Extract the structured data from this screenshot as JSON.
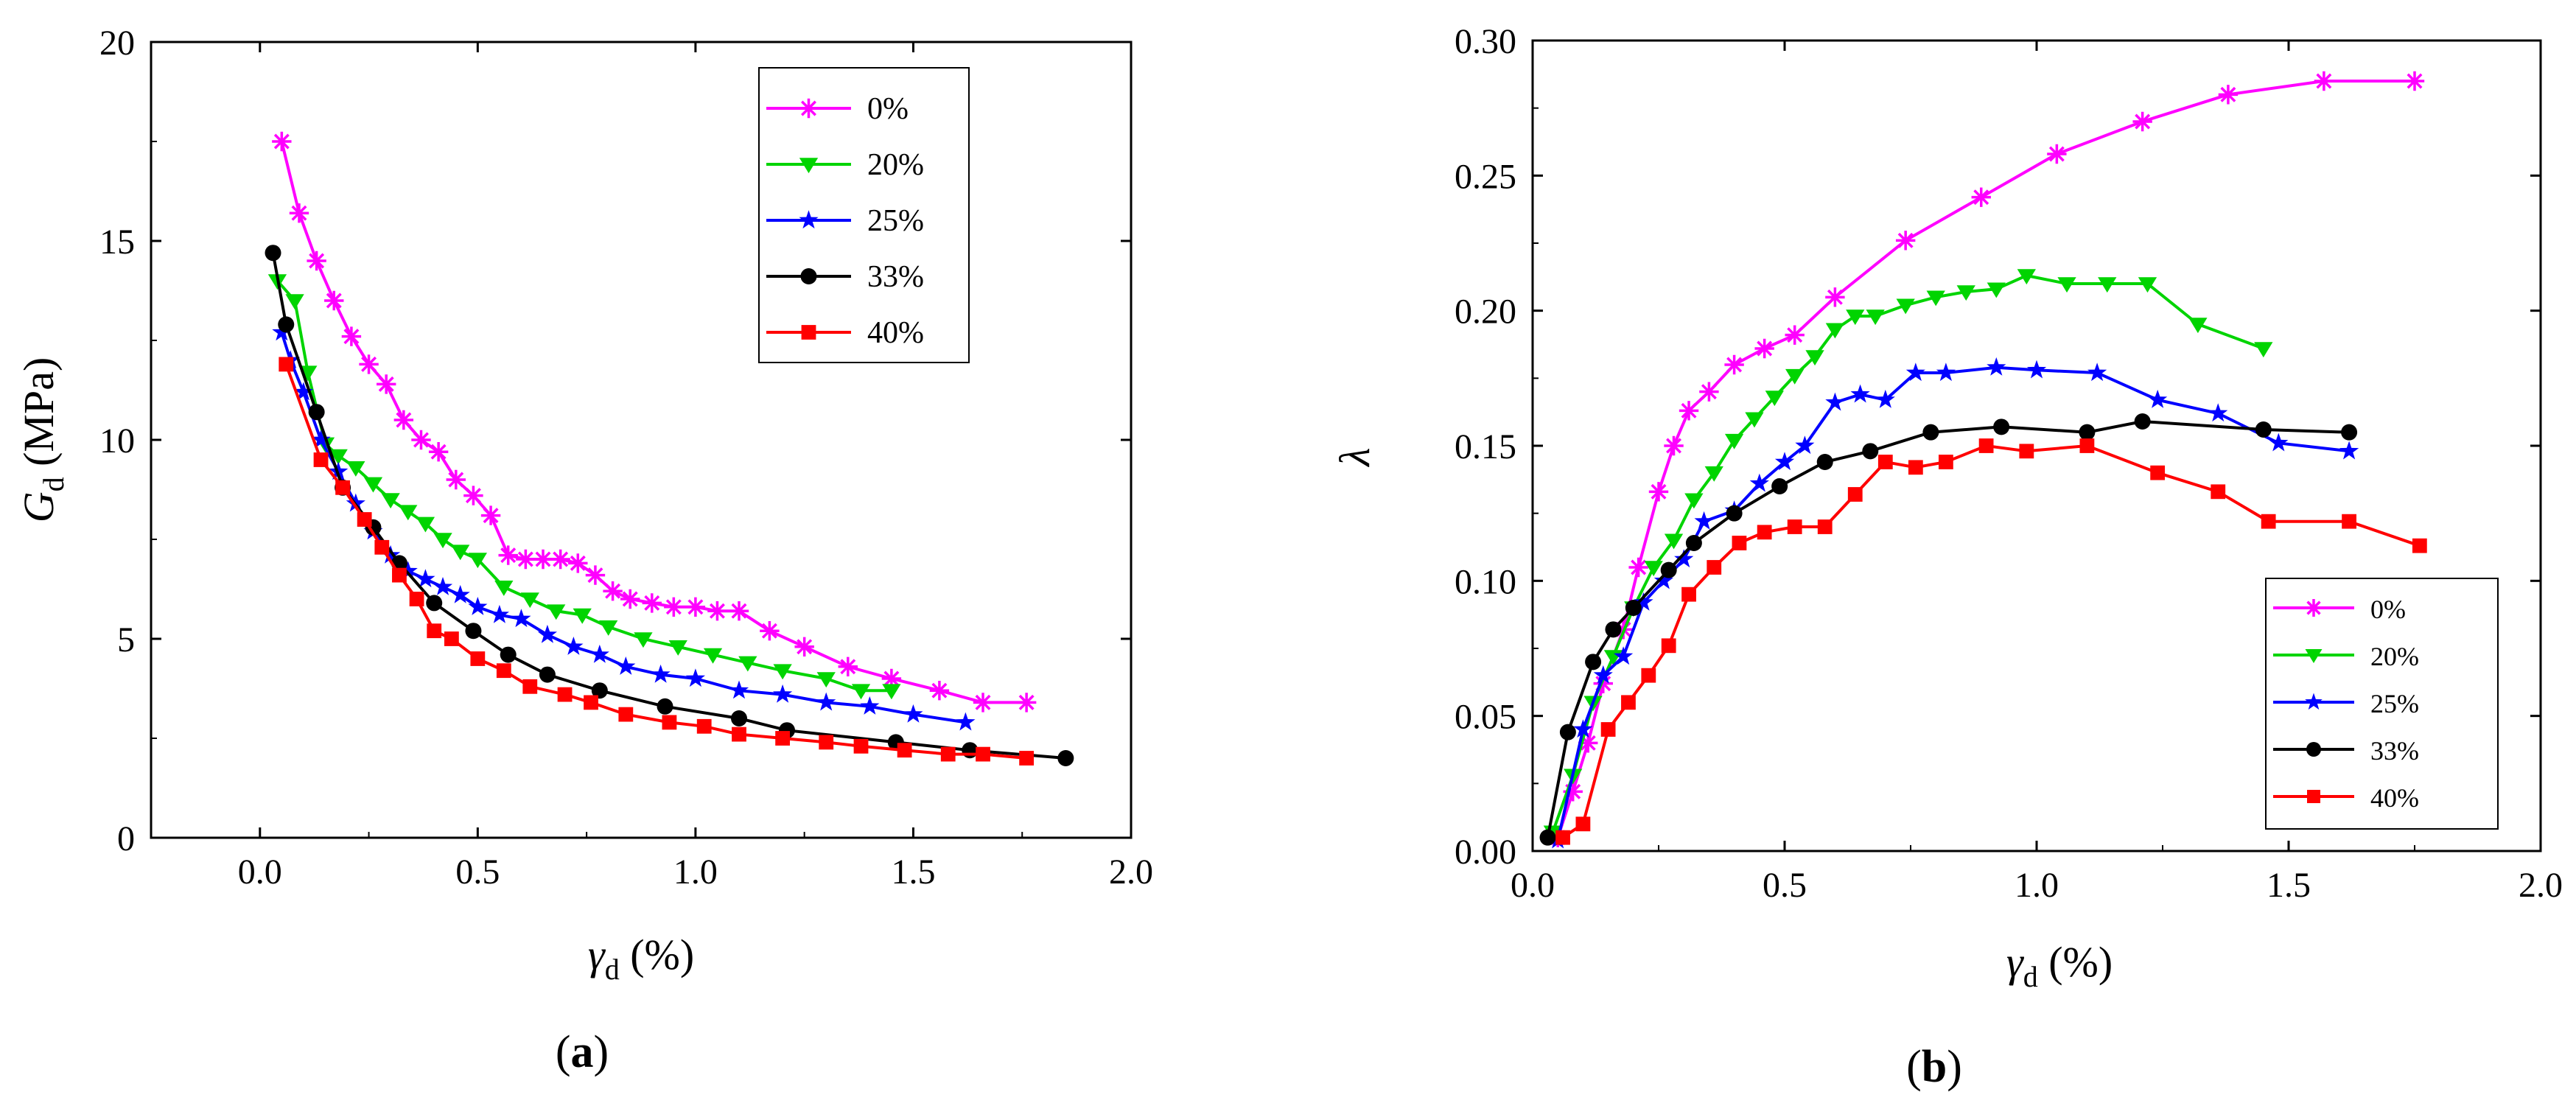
{
  "colors": {
    "0%": "#ff00ff",
    "20%": "#00d400",
    "25%": "#0000ff",
    "33%": "#000000",
    "40%": "#ff0000"
  },
  "panel_labels": {
    "a_open": "(",
    "a_letter": "a",
    "a_close": ")",
    "b_open": "(",
    "b_letter": "b",
    "b_close": ")"
  },
  "axis_titles": {
    "a_y_sym": "G",
    "a_y_sub": "d",
    "a_y_unit": " (MPa)",
    "a_x_sym": "γ",
    "a_x_sub": "d",
    "a_x_unit": " (%)",
    "b_y_sym": "λ",
    "b_x_sym": "γ",
    "b_x_sub": "d",
    "b_x_unit": " (%)"
  },
  "chart_data": [
    {
      "type": "line",
      "panel": "a",
      "title": "",
      "xlabel": "γd (%)",
      "ylabel": "Gd (MPa)",
      "xlim": [
        -0.25,
        2.0
      ],
      "ylim": [
        0,
        20
      ],
      "xticks": [
        0.0,
        0.5,
        1.0,
        1.5,
        2.0
      ],
      "yticks": [
        0,
        5,
        10,
        15,
        20
      ],
      "xtick_labels": [
        "0.0",
        "0.5",
        "1.0",
        "1.5",
        "2.0"
      ],
      "ytick_labels": [
        "0",
        "5",
        "10",
        "15",
        "20"
      ],
      "legend_position": "top-right",
      "series": [
        {
          "name": "0%",
          "marker": "asterisk",
          "x": [
            0.05,
            0.09,
            0.13,
            0.17,
            0.21,
            0.25,
            0.29,
            0.33,
            0.37,
            0.41,
            0.45,
            0.49,
            0.53,
            0.57,
            0.61,
            0.65,
            0.69,
            0.73,
            0.77,
            0.81,
            0.85,
            0.9,
            0.95,
            1.0,
            1.05,
            1.1,
            1.17,
            1.25,
            1.35,
            1.45,
            1.56,
            1.66,
            1.76
          ],
          "y": [
            17.5,
            15.7,
            14.5,
            13.5,
            12.6,
            11.9,
            11.4,
            10.5,
            10.0,
            9.7,
            9.0,
            8.6,
            8.1,
            7.1,
            7.0,
            7.0,
            7.0,
            6.9,
            6.6,
            6.2,
            6.0,
            5.9,
            5.8,
            5.8,
            5.7,
            5.7,
            5.2,
            4.8,
            4.3,
            4.0,
            3.7,
            3.4,
            3.4
          ]
        },
        {
          "name": "20%",
          "marker": "triangle-down",
          "x": [
            0.04,
            0.08,
            0.11,
            0.15,
            0.18,
            0.22,
            0.26,
            0.3,
            0.34,
            0.38,
            0.42,
            0.46,
            0.5,
            0.56,
            0.62,
            0.68,
            0.74,
            0.8,
            0.88,
            0.96,
            1.04,
            1.12,
            1.2,
            1.3,
            1.38,
            1.45
          ],
          "y": [
            14.0,
            13.5,
            11.7,
            9.9,
            9.6,
            9.3,
            8.9,
            8.5,
            8.2,
            7.9,
            7.5,
            7.2,
            7.0,
            6.3,
            6.0,
            5.7,
            5.6,
            5.3,
            5.0,
            4.8,
            4.6,
            4.4,
            4.2,
            4.0,
            3.7,
            3.7
          ]
        },
        {
          "name": "25%",
          "marker": "star",
          "x": [
            0.05,
            0.07,
            0.1,
            0.14,
            0.18,
            0.22,
            0.26,
            0.3,
            0.34,
            0.38,
            0.42,
            0.46,
            0.5,
            0.55,
            0.6,
            0.66,
            0.72,
            0.78,
            0.84,
            0.92,
            1.0,
            1.1,
            1.2,
            1.3,
            1.4,
            1.5,
            1.62
          ],
          "y": [
            12.7,
            12.0,
            11.2,
            10.0,
            9.2,
            8.4,
            7.7,
            7.1,
            6.7,
            6.5,
            6.3,
            6.1,
            5.8,
            5.6,
            5.5,
            5.1,
            4.8,
            4.6,
            4.3,
            4.1,
            4.0,
            3.7,
            3.6,
            3.4,
            3.3,
            3.1,
            2.9
          ]
        },
        {
          "name": "33%",
          "marker": "circle",
          "x": [
            0.03,
            0.06,
            0.13,
            0.19,
            0.26,
            0.32,
            0.4,
            0.49,
            0.57,
            0.66,
            0.78,
            0.93,
            1.1,
            1.21,
            1.46,
            1.63,
            1.85
          ],
          "y": [
            14.7,
            12.9,
            10.7,
            8.8,
            7.8,
            6.9,
            5.9,
            5.2,
            4.6,
            4.1,
            3.7,
            3.3,
            3.0,
            2.7,
            2.4,
            2.2,
            2.0
          ]
        },
        {
          "name": "40%",
          "marker": "square",
          "x": [
            0.06,
            0.14,
            0.19,
            0.24,
            0.28,
            0.32,
            0.36,
            0.4,
            0.44,
            0.5,
            0.56,
            0.62,
            0.7,
            0.76,
            0.84,
            0.94,
            1.02,
            1.1,
            1.2,
            1.3,
            1.38,
            1.48,
            1.58,
            1.66,
            1.76
          ],
          "y": [
            11.9,
            9.5,
            8.8,
            8.0,
            7.3,
            6.6,
            6.0,
            5.2,
            5.0,
            4.5,
            4.2,
            3.8,
            3.6,
            3.4,
            3.1,
            2.9,
            2.8,
            2.6,
            2.5,
            2.4,
            2.3,
            2.2,
            2.1,
            2.1,
            2.0
          ]
        }
      ]
    },
    {
      "type": "line",
      "panel": "b",
      "title": "",
      "xlabel": "γd (%)",
      "ylabel": "λ",
      "xlim": [
        0,
        2.0
      ],
      "ylim": [
        0,
        0.3
      ],
      "xticks": [
        0.0,
        0.5,
        1.0,
        1.5,
        2.0
      ],
      "yticks": [
        0.0,
        0.05,
        0.1,
        0.15,
        0.2,
        0.25,
        0.3
      ],
      "xtick_labels": [
        "0.0",
        "0.5",
        "1.0",
        "1.5",
        "2.0"
      ],
      "ytick_labels": [
        "0.00",
        "0.05",
        "0.10",
        "0.15",
        "0.20",
        "0.25",
        "0.30"
      ],
      "legend_position": "bottom-right",
      "series": [
        {
          "name": "0%",
          "marker": "asterisk",
          "x": [
            0.05,
            0.08,
            0.11,
            0.14,
            0.18,
            0.21,
            0.25,
            0.28,
            0.31,
            0.35,
            0.4,
            0.46,
            0.52,
            0.6,
            0.74,
            0.89,
            1.04,
            1.21,
            1.38,
            1.57,
            1.75
          ],
          "y": [
            0.005,
            0.022,
            0.04,
            0.062,
            0.082,
            0.105,
            0.133,
            0.15,
            0.163,
            0.17,
            0.18,
            0.186,
            0.191,
            0.205,
            0.226,
            0.242,
            0.258,
            0.27,
            0.28,
            0.285,
            0.285
          ]
        },
        {
          "name": "20%",
          "marker": "triangle-down",
          "x": [
            0.04,
            0.08,
            0.12,
            0.16,
            0.2,
            0.24,
            0.28,
            0.32,
            0.36,
            0.4,
            0.44,
            0.48,
            0.52,
            0.56,
            0.6,
            0.64,
            0.68,
            0.74,
            0.8,
            0.86,
            0.92,
            0.98,
            1.06,
            1.14,
            1.22,
            1.32,
            1.45
          ],
          "y": [
            0.007,
            0.028,
            0.055,
            0.072,
            0.09,
            0.105,
            0.115,
            0.13,
            0.14,
            0.152,
            0.16,
            0.168,
            0.176,
            0.183,
            0.193,
            0.198,
            0.198,
            0.202,
            0.205,
            0.207,
            0.208,
            0.213,
            0.21,
            0.21,
            0.21,
            0.195,
            0.186
          ]
        },
        {
          "name": "25%",
          "marker": "star",
          "x": [
            0.05,
            0.1,
            0.14,
            0.18,
            0.22,
            0.26,
            0.3,
            0.34,
            0.4,
            0.45,
            0.5,
            0.54,
            0.6,
            0.65,
            0.7,
            0.76,
            0.82,
            0.92,
            1.0,
            1.12,
            1.24,
            1.36,
            1.48,
            1.62
          ],
          "y": [
            0.004,
            0.045,
            0.065,
            0.072,
            0.092,
            0.1,
            0.108,
            0.122,
            0.126,
            0.136,
            0.144,
            0.15,
            0.166,
            0.169,
            0.167,
            0.177,
            0.177,
            0.179,
            0.178,
            0.177,
            0.167,
            0.162,
            0.151,
            0.148
          ]
        },
        {
          "name": "33%",
          "marker": "circle",
          "x": [
            0.03,
            0.07,
            0.12,
            0.16,
            0.2,
            0.27,
            0.32,
            0.4,
            0.49,
            0.58,
            0.67,
            0.79,
            0.93,
            1.1,
            1.21,
            1.45,
            1.62
          ],
          "y": [
            0.005,
            0.044,
            0.07,
            0.082,
            0.09,
            0.104,
            0.114,
            0.125,
            0.135,
            0.144,
            0.148,
            0.155,
            0.157,
            0.155,
            0.159,
            0.156,
            0.155
          ]
        },
        {
          "name": "40%",
          "marker": "square",
          "x": [
            0.06,
            0.1,
            0.15,
            0.19,
            0.23,
            0.27,
            0.31,
            0.36,
            0.41,
            0.46,
            0.52,
            0.58,
            0.64,
            0.7,
            0.76,
            0.82,
            0.9,
            0.98,
            1.1,
            1.24,
            1.36,
            1.46,
            1.62,
            1.76
          ],
          "y": [
            0.005,
            0.01,
            0.045,
            0.055,
            0.065,
            0.076,
            0.095,
            0.105,
            0.114,
            0.118,
            0.12,
            0.12,
            0.132,
            0.144,
            0.142,
            0.144,
            0.15,
            0.148,
            0.15,
            0.14,
            0.133,
            0.122,
            0.122,
            0.113
          ]
        }
      ]
    }
  ]
}
